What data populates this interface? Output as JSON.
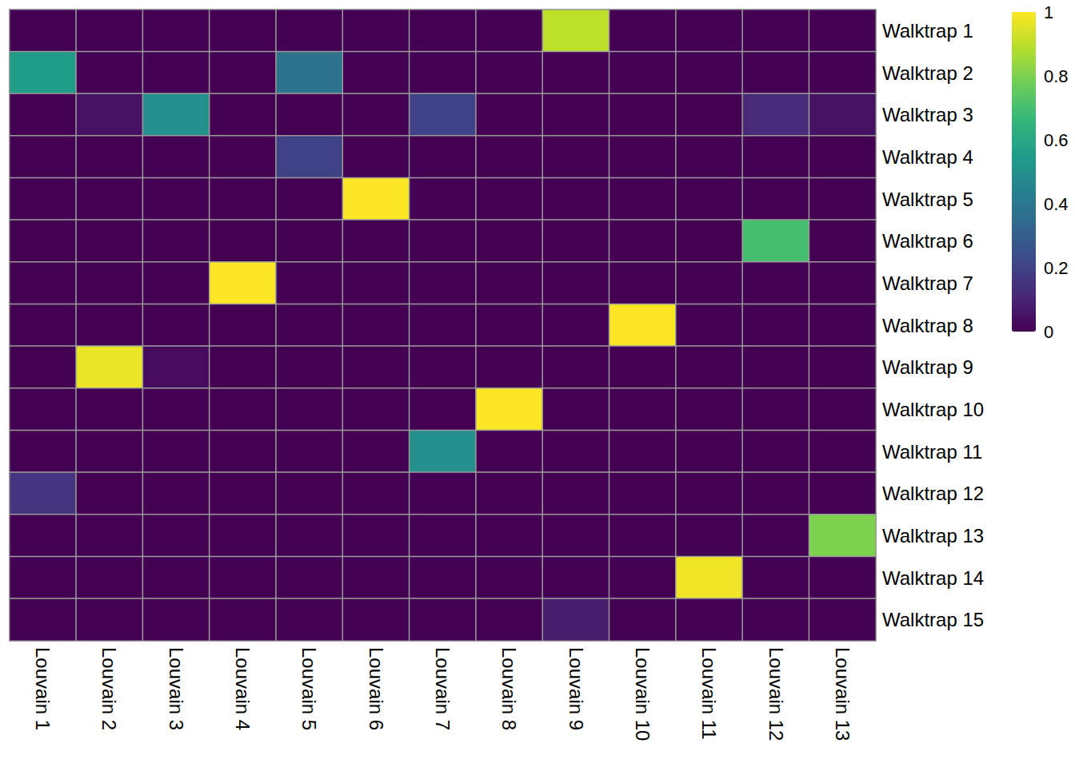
{
  "chart_data": {
    "type": "heatmap",
    "rows": [
      "Walktrap 1",
      "Walktrap 2",
      "Walktrap 3",
      "Walktrap 4",
      "Walktrap 5",
      "Walktrap 6",
      "Walktrap 7",
      "Walktrap 8",
      "Walktrap 9",
      "Walktrap 10",
      "Walktrap 11",
      "Walktrap 12",
      "Walktrap 13",
      "Walktrap 14",
      "Walktrap 15"
    ],
    "columns": [
      "Louvain 1",
      "Louvain 2",
      "Louvain 3",
      "Louvain 4",
      "Louvain 5",
      "Louvain 6",
      "Louvain 7",
      "Louvain 8",
      "Louvain 9",
      "Louvain 10",
      "Louvain 11",
      "Louvain 12",
      "Louvain 13"
    ],
    "cells": [
      [
        0,
        0,
        0,
        0,
        0,
        0,
        0,
        0,
        0.9,
        0,
        0,
        0,
        0
      ],
      [
        0.55,
        0,
        0,
        0,
        0.38,
        0,
        0,
        0,
        0,
        0,
        0,
        0,
        0
      ],
      [
        0,
        0.05,
        0.5,
        0,
        0,
        0,
        0.2,
        0,
        0,
        0,
        0,
        0.12,
        0.05
      ],
      [
        0,
        0,
        0,
        0,
        0.2,
        0,
        0,
        0,
        0,
        0,
        0,
        0,
        0
      ],
      [
        0,
        0,
        0,
        0,
        0,
        1,
        0,
        0,
        0,
        0,
        0,
        0,
        0
      ],
      [
        0,
        0,
        0,
        0,
        0,
        0,
        0,
        0,
        0,
        0,
        0,
        0.7,
        0
      ],
      [
        0,
        0,
        0,
        1,
        0,
        0,
        0,
        0,
        0,
        0,
        0,
        0,
        0
      ],
      [
        0,
        0,
        0,
        0,
        0,
        0,
        0,
        0,
        0,
        1,
        0,
        0,
        0
      ],
      [
        0,
        0.97,
        0.03,
        0,
        0,
        0,
        0,
        0,
        0,
        0,
        0,
        0,
        0
      ],
      [
        0,
        0,
        0,
        0,
        0,
        0,
        0,
        1,
        0,
        0,
        0,
        0,
        0
      ],
      [
        0,
        0,
        0,
        0,
        0,
        0,
        0.5,
        0,
        0,
        0,
        0,
        0,
        0
      ],
      [
        0.15,
        0,
        0,
        0,
        0,
        0,
        0,
        0,
        0,
        0,
        0,
        0,
        0
      ],
      [
        0,
        0,
        0,
        0,
        0,
        0,
        0,
        0,
        0,
        0,
        0,
        0,
        0.8
      ],
      [
        0,
        0,
        0,
        0,
        0,
        0,
        0,
        0,
        0,
        0,
        0.98,
        0,
        0
      ],
      [
        0,
        0,
        0,
        0,
        0,
        0,
        0,
        0,
        0.08,
        0,
        0,
        0,
        0
      ]
    ],
    "colorbar_range": [
      0,
      1
    ],
    "colorbar_ticks": [
      0,
      0.2,
      0.4,
      0.6,
      0.8,
      1
    ]
  }
}
